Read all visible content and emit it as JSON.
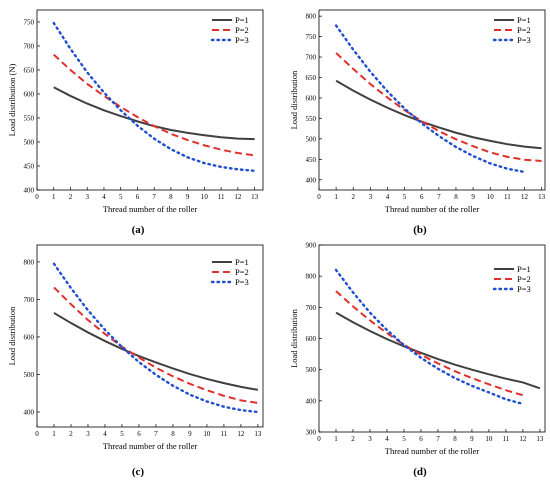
{
  "chart_data": [
    {
      "type": "line",
      "caption": "(a)",
      "xlabel": "Thread number of the roller",
      "ylabel": "Load distribution (N)",
      "xlim": [
        0,
        13.5
      ],
      "ylim": [
        400,
        775
      ],
      "xticks": [
        0,
        1,
        2,
        3,
        4,
        5,
        6,
        7,
        8,
        9,
        10,
        11,
        12,
        13
      ],
      "yticks": [
        400,
        450,
        500,
        550,
        600,
        650,
        700,
        750
      ],
      "legend_position": "top-right",
      "grid": false,
      "series": [
        {
          "name": "P=1",
          "color": "#404040",
          "dash": "solid",
          "x": [
            1,
            2,
            3,
            4,
            5,
            6,
            7,
            8,
            9,
            10,
            11,
            12,
            13
          ],
          "y": [
            614,
            596,
            580,
            566,
            554,
            543,
            533,
            525,
            519,
            514,
            510,
            507,
            506
          ]
        },
        {
          "name": "P=2",
          "color": "#e0302c",
          "dash": "dashed",
          "x": [
            1,
            2,
            3,
            4,
            5,
            6,
            7,
            8,
            9,
            10,
            11,
            12,
            13
          ],
          "y": [
            682,
            650,
            621,
            596,
            573,
            552,
            533,
            517,
            504,
            493,
            484,
            477,
            472
          ]
        },
        {
          "name": "P=3",
          "color": "#1f4fd0",
          "dash": "dotted",
          "x": [
            1,
            2,
            3,
            4,
            5,
            6,
            7,
            8,
            9,
            10,
            11,
            12,
            13
          ],
          "y": [
            748,
            694,
            645,
            603,
            566,
            534,
            507,
            485,
            468,
            456,
            448,
            443,
            440
          ]
        }
      ]
    },
    {
      "type": "line",
      "caption": "(b)",
      "xlabel": "Thread number of the roller",
      "ylabel": "Load distribution",
      "xlim": [
        0,
        13.2
      ],
      "ylim": [
        375,
        815
      ],
      "xticks": [
        0,
        1,
        2,
        3,
        4,
        5,
        6,
        7,
        8,
        9,
        10,
        11,
        12,
        13
      ],
      "yticks": [
        400,
        450,
        500,
        550,
        600,
        650,
        700,
        750,
        800
      ],
      "legend_position": "top-right",
      "grid": false,
      "series": [
        {
          "name": "P=1",
          "color": "#404040",
          "dash": "solid",
          "x": [
            1,
            2,
            3,
            4,
            5,
            6,
            7,
            8,
            9,
            10,
            11,
            12,
            13
          ],
          "y": [
            642,
            618,
            596,
            576,
            558,
            542,
            528,
            515,
            504,
            495,
            487,
            481,
            477
          ]
        },
        {
          "name": "P=2",
          "color": "#e0302c",
          "dash": "dashed",
          "x": [
            1,
            2,
            3,
            4,
            5,
            6,
            7,
            8,
            9,
            10,
            11,
            12,
            13
          ],
          "y": [
            710,
            671,
            634,
            601,
            570,
            543,
            519,
            499,
            482,
            467,
            456,
            449,
            446
          ]
        },
        {
          "name": "P=3",
          "color": "#1f4fd0",
          "dash": "dotted",
          "x": [
            1,
            2,
            3,
            4,
            5,
            6,
            7,
            8,
            9,
            10,
            11,
            12
          ],
          "y": [
            777,
            718,
            664,
            616,
            574,
            538,
            507,
            480,
            458,
            440,
            427,
            419
          ]
        }
      ]
    },
    {
      "type": "line",
      "caption": "(c)",
      "xlabel": "Thread number of the roller",
      "ylabel": "Load distribution",
      "xlim": [
        0,
        13.3
      ],
      "ylim": [
        360,
        845
      ],
      "xticks": [
        0,
        1,
        2,
        3,
        4,
        5,
        6,
        7,
        8,
        9,
        10,
        11,
        12,
        13
      ],
      "yticks": [
        400,
        500,
        600,
        700,
        800
      ],
      "legend_position": "top-right",
      "grid": false,
      "series": [
        {
          "name": "P=1",
          "color": "#404040",
          "dash": "solid",
          "x": [
            1,
            2,
            3,
            4,
            5,
            6,
            7,
            8,
            9,
            10,
            11,
            12,
            13
          ],
          "y": [
            664,
            637,
            612,
            589,
            568,
            549,
            532,
            516,
            501,
            488,
            477,
            467,
            459
          ]
        },
        {
          "name": "P=2",
          "color": "#e0302c",
          "dash": "dashed",
          "x": [
            1,
            2,
            3,
            4,
            5,
            6,
            7,
            8,
            9,
            10,
            11,
            12,
            13
          ],
          "y": [
            732,
            687,
            645,
            608,
            574,
            545,
            518,
            495,
            475,
            458,
            443,
            431,
            424
          ]
        },
        {
          "name": "P=3",
          "color": "#1f4fd0",
          "dash": "dotted",
          "x": [
            1,
            2,
            3,
            4,
            5,
            6,
            7,
            8,
            9,
            10,
            11,
            12,
            13
          ],
          "y": [
            795,
            730,
            671,
            619,
            573,
            533,
            499,
            470,
            446,
            428,
            414,
            405,
            400
          ]
        }
      ]
    },
    {
      "type": "line",
      "caption": "(d)",
      "xlabel": "Thread number of the roller",
      "ylabel": "Load distribution",
      "xlim": [
        0,
        13.3
      ],
      "ylim": [
        300,
        900
      ],
      "xticks": [
        0,
        1,
        2,
        3,
        4,
        5,
        6,
        7,
        8,
        9,
        10,
        11,
        12,
        13
      ],
      "yticks": [
        300,
        400,
        500,
        600,
        700,
        800,
        900
      ],
      "legend_position": "top-right",
      "grid": false,
      "series": [
        {
          "name": "P=1",
          "color": "#404040",
          "dash": "solid",
          "x": [
            1,
            2,
            3,
            4,
            5,
            6,
            7,
            8,
            9,
            10,
            11,
            12,
            13
          ],
          "y": [
            683,
            652,
            624,
            598,
            575,
            554,
            534,
            516,
            500,
            485,
            471,
            459,
            440
          ]
        },
        {
          "name": "P=2",
          "color": "#e0302c",
          "dash": "dashed",
          "x": [
            1,
            2,
            3,
            4,
            5,
            6,
            7,
            8,
            9,
            10,
            11,
            12
          ],
          "y": [
            752,
            703,
            658,
            617,
            580,
            548,
            520,
            495,
            473,
            453,
            434,
            418
          ]
        },
        {
          "name": "P=3",
          "color": "#1f4fd0",
          "dash": "dotted",
          "x": [
            1,
            2,
            3,
            4,
            5,
            6,
            7,
            8,
            9,
            10,
            11,
            12
          ],
          "y": [
            820,
            748,
            683,
            627,
            579,
            538,
            503,
            473,
            448,
            427,
            405,
            390
          ]
        }
      ]
    }
  ]
}
